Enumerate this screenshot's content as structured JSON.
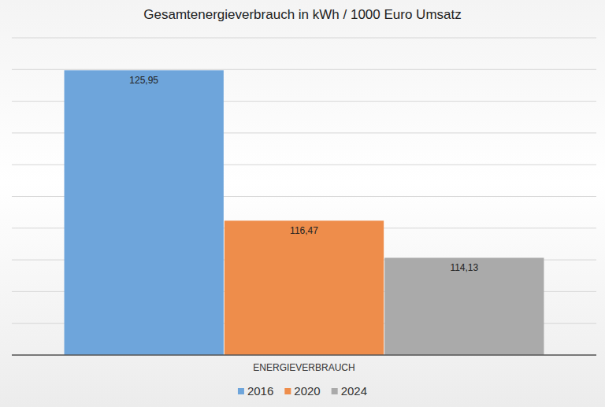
{
  "chart_data": {
    "type": "bar",
    "title": "Gesamtenergieverbrauch in kWh / 1000 Euro Umsatz",
    "categories": [
      "ENERGIEVERBRAUCH"
    ],
    "series": [
      {
        "name": "2016",
        "color": "#6ea5db",
        "values": [
          125.95
        ],
        "value_labels": [
          "125,95"
        ]
      },
      {
        "name": "2020",
        "color": "#ee8d4b",
        "values": [
          116.47
        ],
        "value_labels": [
          "116,47"
        ]
      },
      {
        "name": "2024",
        "color": "#aaaaaa",
        "values": [
          114.13
        ],
        "value_labels": [
          "114,13"
        ]
      }
    ],
    "ylim": [
      108,
      128
    ],
    "yticks": [
      108,
      110,
      112,
      114,
      116,
      118,
      120,
      122,
      124,
      126,
      128
    ],
    "grid": true,
    "data_labels": true,
    "tick_labels": "x",
    "legend": "bottom"
  }
}
